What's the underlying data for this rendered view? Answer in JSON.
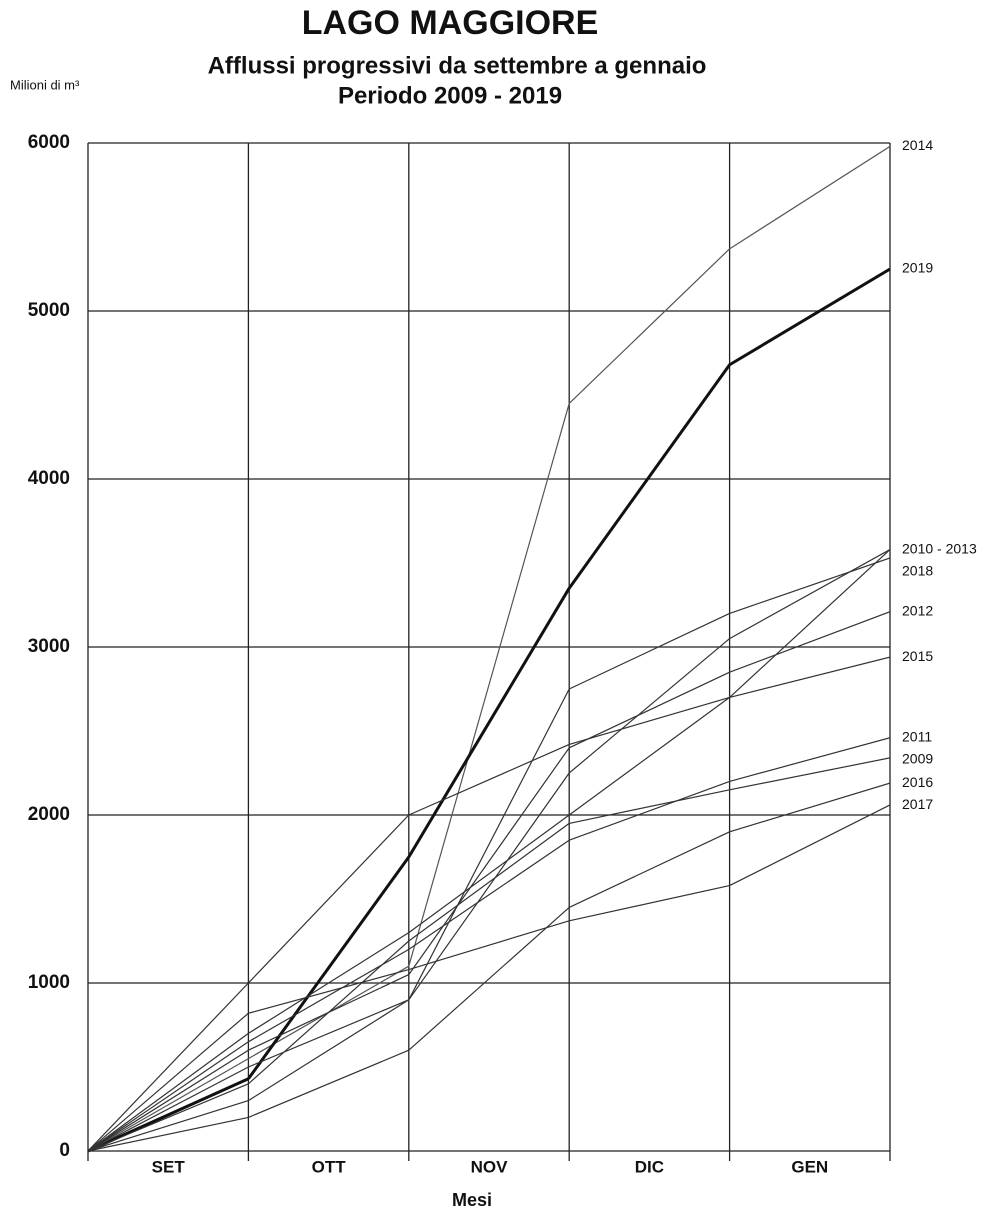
{
  "chart_data": {
    "type": "line",
    "title": "LAGO MAGGIORE",
    "subtitle": "Afflussi progressivi da settembre a gennaio",
    "subtitle2": "Periodo 2009 - 2019",
    "y_label": "Milioni di m³",
    "x_label": "Mesi",
    "categories": [
      "SET",
      "OTT",
      "NOV",
      "DIC",
      "GEN"
    ],
    "ylim": [
      0,
      6000
    ],
    "yticks": [
      0,
      1000,
      2000,
      3000,
      4000,
      5000,
      6000
    ],
    "grid": true,
    "series": [
      {
        "name": "2014",
        "color": "#555555",
        "values": [
          550,
          1100,
          4450,
          5370,
          5980
        ]
      },
      {
        "name": "2019",
        "color": "#111111",
        "width": 3,
        "values": [
          430,
          1750,
          3350,
          4680,
          5250
        ]
      },
      {
        "name": "2010 - 2013",
        "color": "#333333",
        "values": [
          700,
          1300,
          2000,
          2700,
          3580
        ]
      },
      {
        "color": "#333333",
        "values": [
          300,
          900,
          2250,
          3050,
          3580
        ]
      },
      {
        "name": "2018",
        "color": "#333333",
        "values": [
          500,
          900,
          2750,
          3200,
          3530
        ]
      },
      {
        "name": "2012",
        "color": "#333333",
        "values": [
          600,
          1050,
          2400,
          2850,
          3210
        ]
      },
      {
        "name": "2015",
        "color": "#333333",
        "values": [
          1000,
          2000,
          2420,
          2700,
          2940
        ]
      },
      {
        "name": "2011",
        "color": "#333333",
        "values": [
          650,
          1200,
          1850,
          2200,
          2460
        ]
      },
      {
        "name": "2009",
        "color": "#333333",
        "values": [
          400,
          1250,
          1950,
          2150,
          2340
        ]
      },
      {
        "name": "2016",
        "color": "#333333",
        "values": [
          200,
          600,
          1450,
          1900,
          2190
        ]
      },
      {
        "name": "2017",
        "color": "#333333",
        "values": [
          820,
          1080,
          1370,
          1580,
          2060
        ]
      }
    ]
  }
}
